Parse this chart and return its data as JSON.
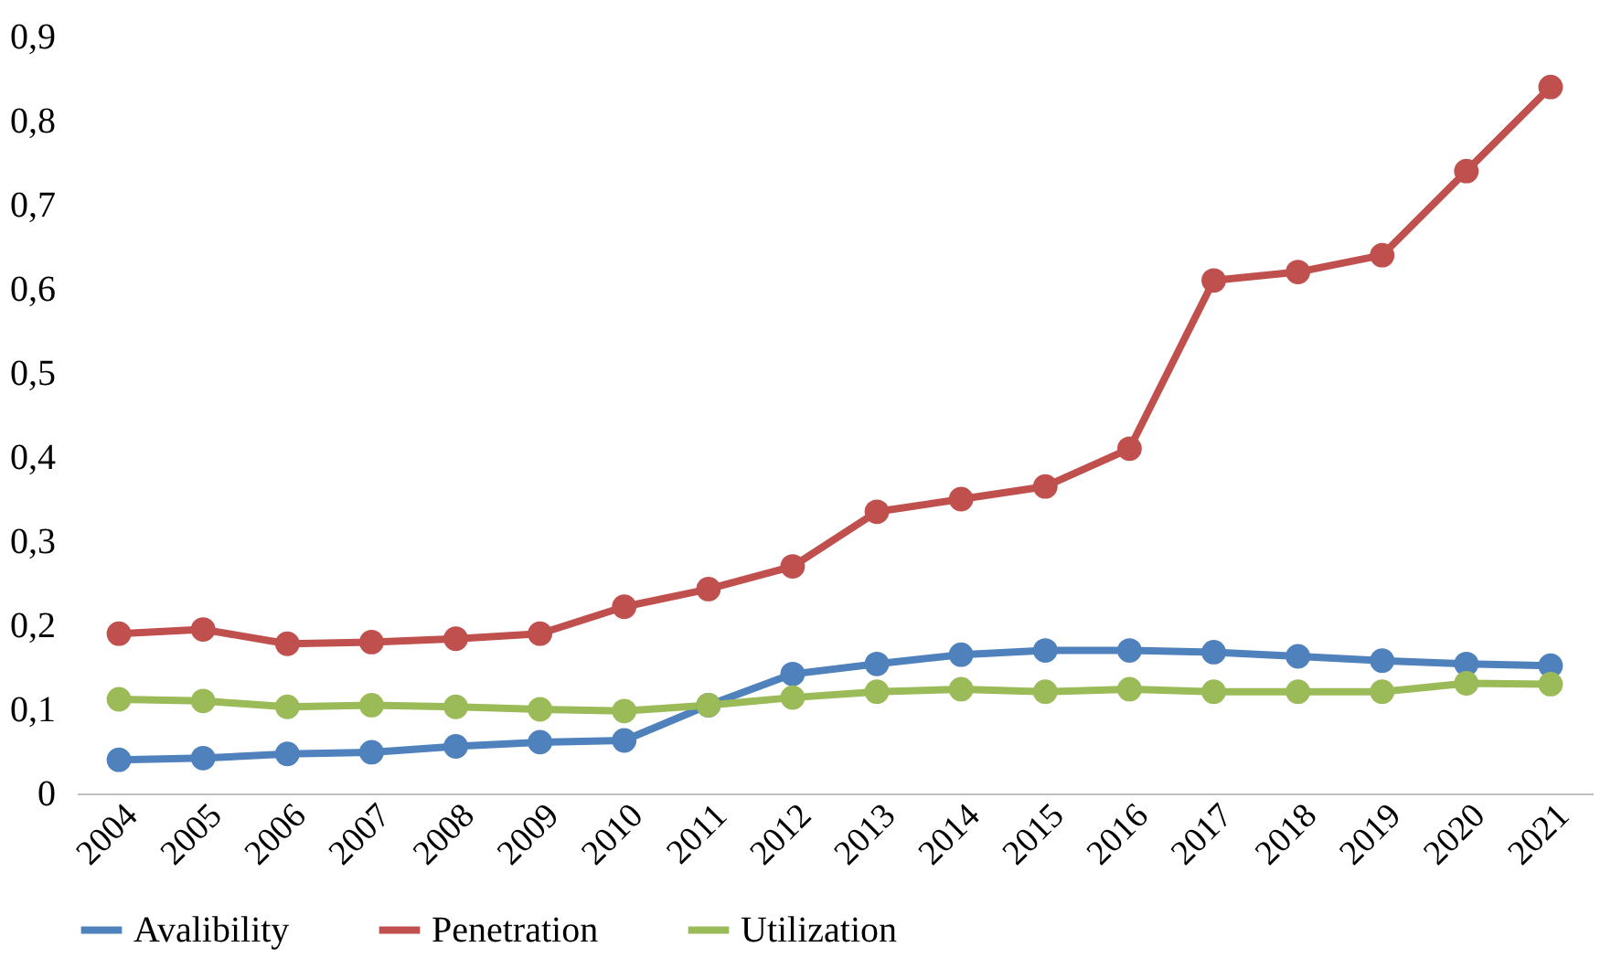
{
  "chart_data": {
    "type": "line",
    "categories": [
      "2004",
      "2005",
      "2006",
      "2007",
      "2008",
      "2009",
      "2010",
      "2011",
      "2012",
      "2013",
      "2014",
      "2015",
      "2016",
      "2017",
      "2018",
      "2019",
      "2020",
      "2021"
    ],
    "series": [
      {
        "name": "Avalibility",
        "color": "#4f81bd",
        "values": [
          0.04,
          0.042,
          0.047,
          0.049,
          0.056,
          0.061,
          0.063,
          0.105,
          0.142,
          0.154,
          0.165,
          0.17,
          0.17,
          0.168,
          0.163,
          0.158,
          0.154,
          0.152
        ]
      },
      {
        "name": "Penetration",
        "color": "#c0504d",
        "values": [
          0.19,
          0.195,
          0.178,
          0.18,
          0.184,
          0.19,
          0.222,
          0.243,
          0.27,
          0.335,
          0.35,
          0.365,
          0.41,
          0.61,
          0.62,
          0.64,
          0.74,
          0.84
        ]
      },
      {
        "name": "Utilization",
        "color": "#9bbb59",
        "values": [
          0.112,
          0.11,
          0.103,
          0.105,
          0.103,
          0.1,
          0.098,
          0.105,
          0.114,
          0.121,
          0.124,
          0.121,
          0.124,
          0.121,
          0.121,
          0.121,
          0.131,
          0.13
        ]
      }
    ],
    "ylim": [
      0,
      0.9
    ],
    "yticks": [
      0,
      {
        "value": 0.1,
        "label": "0,1"
      },
      {
        "value": 0.2,
        "label": "0,2"
      },
      {
        "value": 0.3,
        "label": "0,3"
      },
      {
        "value": 0.4,
        "label": "0,4"
      },
      {
        "value": 0.5,
        "label": "0,5"
      },
      {
        "value": 0.6,
        "label": "0,6"
      },
      {
        "value": 0.7,
        "label": "0,7"
      },
      {
        "value": 0.8,
        "label": "0,8"
      },
      {
        "value": 0.9,
        "label": "0,9"
      }
    ],
    "grid": false,
    "legend": "bottom",
    "marker": "circle",
    "line_style": "solid"
  }
}
